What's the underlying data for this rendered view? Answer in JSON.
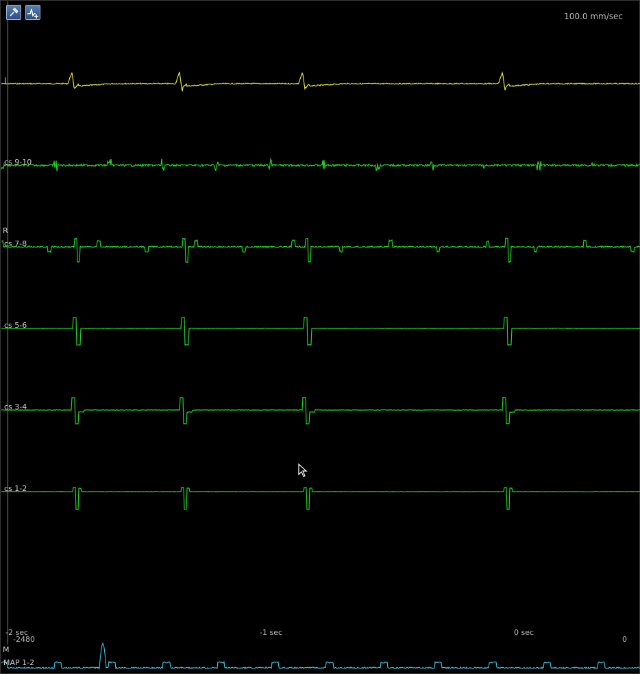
{
  "toolbar": {
    "pin_tool_icon": "pushpin-icon",
    "add_trace_tool_icon": "add-trace-icon"
  },
  "sweep_speed": "100.0 mm/sec",
  "side_markers": {
    "r": "R",
    "m": "M"
  },
  "channels": [
    {
      "id": "lead-i",
      "label": "I",
      "color": "#e8e840"
    },
    {
      "id": "cs-9-10",
      "label": "cs 9-10",
      "color": "#22d622"
    },
    {
      "id": "cs-7-8",
      "label": "cs 7-8",
      "color": "#22d622"
    },
    {
      "id": "cs-5-6",
      "label": "cs 5-6",
      "color": "#22d622"
    },
    {
      "id": "cs-3-4",
      "label": "cs 3-4",
      "color": "#22d622"
    },
    {
      "id": "cs-1-2",
      "label": "cs 1-2",
      "color": "#22d622"
    }
  ],
  "map_channel": {
    "label": "MAP 1-2",
    "color": "#3cc8e8"
  },
  "time_axis": {
    "left": "-2 sec",
    "middle": "-1 sec",
    "right": "0 sec"
  },
  "map_scale": {
    "min": "-2480",
    "max": "0"
  },
  "beat_times_sec": [
    -1.73,
    -1.31,
    -0.83,
    -0.05
  ],
  "cursor": "mouse-pointer"
}
